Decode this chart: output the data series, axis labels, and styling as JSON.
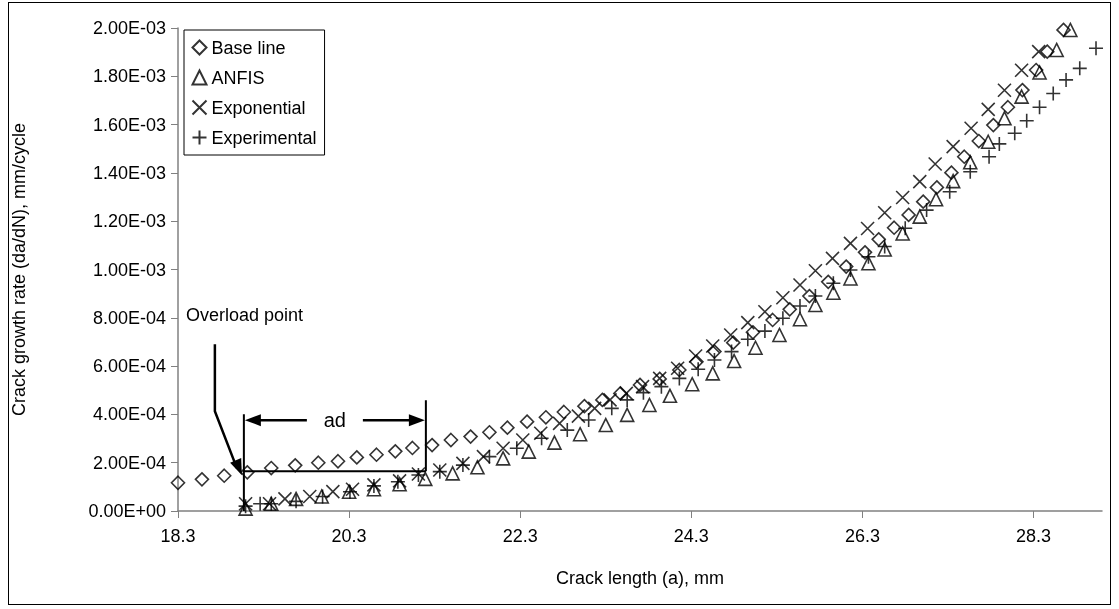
{
  "chart_data": {
    "type": "scatter",
    "xlabel": "Crack length (a), mm",
    "ylabel": "Crack growth rate (da/dN), mm/cycle",
    "xlim": [
      18.3,
      29.1
    ],
    "xticks": [
      18.3,
      20.3,
      22.3,
      24.3,
      26.3,
      28.3
    ],
    "ylim": [
      0,
      0.002
    ],
    "yticks": [
      {
        "value": 0,
        "label": "0.00E+00"
      },
      {
        "value": 0.0002,
        "label": "2.00E-04"
      },
      {
        "value": 0.0004,
        "label": "4.00E-04"
      },
      {
        "value": 0.0006,
        "label": "6.00E-04"
      },
      {
        "value": 0.0008,
        "label": "8.00E-04"
      },
      {
        "value": 0.001,
        "label": "1.00E-03"
      },
      {
        "value": 0.0012,
        "label": "1.20E-03"
      },
      {
        "value": 0.0014,
        "label": "1.40E-03"
      },
      {
        "value": 0.0016,
        "label": "1.60E-03"
      },
      {
        "value": 0.0018,
        "label": "1.80E-03"
      },
      {
        "value": 0.002,
        "label": "2.00E-03"
      }
    ],
    "grid": false,
    "legend": "top left",
    "annotations": [
      {
        "text": "Overload point",
        "x": 19.07,
        "y": 0.000165
      },
      "ad"
    ],
    "series": [
      {
        "name": "Base line",
        "color": "#000000",
        "marker": "diamond",
        "x": [
          18.3,
          18.58,
          18.84,
          19.11,
          19.39,
          19.67,
          19.94,
          20.17,
          20.39,
          20.62,
          20.84,
          21.04,
          21.27,
          21.49,
          21.72,
          21.94,
          22.15,
          22.38,
          22.6,
          22.81,
          23.05,
          23.26,
          23.47,
          23.7,
          23.93,
          24.16,
          24.36,
          24.57,
          24.79,
          25.02,
          25.25,
          25.45,
          25.68,
          25.9,
          26.11,
          26.33,
          26.49,
          26.67,
          26.84,
          27.01,
          27.17,
          27.34,
          27.49,
          27.66,
          27.83,
          28.0,
          28.17,
          28.33,
          28.46,
          28.65
        ],
        "values": [
          0.000117,
          0.000131,
          0.000146,
          0.00016,
          0.000178,
          0.000189,
          0.0002,
          0.000206,
          0.000222,
          0.000233,
          0.000247,
          0.000261,
          0.000273,
          0.000294,
          0.000308,
          0.000326,
          0.000345,
          0.00037,
          0.000388,
          0.00041,
          0.000434,
          0.00046,
          0.000487,
          0.000522,
          0.000547,
          0.000584,
          0.000618,
          0.00066,
          0.000697,
          0.00074,
          0.000791,
          0.000835,
          0.00089,
          0.000949,
          0.001012,
          0.001071,
          0.001125,
          0.001173,
          0.001226,
          0.001281,
          0.00134,
          0.001401,
          0.001467,
          0.001532,
          0.001598,
          0.001672,
          0.001743,
          0.001826,
          0.001902,
          0.001992
        ]
      },
      {
        "name": "ANFIS",
        "color": "#000000",
        "marker": "triangle",
        "x": [
          19.09,
          19.39,
          19.68,
          19.98,
          20.3,
          20.59,
          20.89,
          21.19,
          21.51,
          21.8,
          22.1,
          22.4,
          22.7,
          23.0,
          23.3,
          23.55,
          23.81,
          24.05,
          24.31,
          24.55,
          24.8,
          25.05,
          25.33,
          25.57,
          25.75,
          25.96,
          26.16,
          26.37,
          26.56,
          26.77,
          26.97,
          27.16,
          27.36,
          27.56,
          27.77,
          27.96,
          28.16,
          28.37,
          28.57,
          28.73
        ],
        "values": [
          1e-05,
          3e-05,
          5e-05,
          6e-05,
          8e-05,
          9e-05,
          0.000111,
          0.000133,
          0.000156,
          0.000181,
          0.000218,
          0.000246,
          0.000283,
          0.000318,
          0.000356,
          0.000398,
          0.000439,
          0.000477,
          0.000525,
          0.00057,
          0.000621,
          0.000676,
          0.000729,
          0.000794,
          0.000853,
          0.000904,
          0.000963,
          0.001026,
          0.001083,
          0.001149,
          0.001219,
          0.001291,
          0.001366,
          0.001444,
          0.001529,
          0.001626,
          0.001716,
          0.001816,
          0.001909,
          0.001992
        ]
      },
      {
        "name": "Exponential",
        "color": "#000000",
        "marker": "cross",
        "x": [
          19.09,
          19.37,
          19.55,
          19.84,
          20.11,
          20.34,
          20.59,
          20.89,
          21.11,
          21.36,
          21.63,
          21.87,
          22.1,
          22.33,
          22.54,
          22.76,
          22.98,
          23.17,
          23.35,
          23.54,
          23.73,
          23.93,
          24.14,
          24.35,
          24.55,
          24.76,
          24.96,
          25.16,
          25.37,
          25.57,
          25.75,
          25.95,
          26.16,
          26.36,
          26.56,
          26.77,
          26.97,
          27.15,
          27.36,
          27.57,
          27.77,
          27.96,
          28.16,
          28.36
        ],
        "values": [
          3e-05,
          3e-05,
          5e-05,
          6e-05,
          8e-05,
          9e-05,
          0.000108,
          0.000125,
          0.000153,
          0.00017,
          0.000197,
          0.000225,
          0.00026,
          0.000294,
          0.000322,
          0.000363,
          0.000393,
          0.000425,
          0.00046,
          0.000487,
          0.000515,
          0.000549,
          0.000591,
          0.000642,
          0.000683,
          0.000729,
          0.00078,
          0.000825,
          0.000883,
          0.000936,
          0.000995,
          0.001046,
          0.001108,
          0.00117,
          0.001235,
          0.001298,
          0.001364,
          0.001437,
          0.001509,
          0.001585,
          0.001663,
          0.001742,
          0.001825,
          0.001902
        ]
      },
      {
        "name": "Experimental",
        "color": "#000000",
        "marker": "plus",
        "x": [
          19.09,
          19.26,
          19.39,
          19.68,
          19.99,
          20.31,
          20.59,
          20.87,
          21.11,
          21.36,
          21.63,
          21.94,
          22.26,
          22.55,
          22.85,
          23.1,
          23.37,
          23.55,
          23.74,
          23.95,
          24.16,
          24.38,
          24.57,
          24.77,
          24.96,
          25.16,
          25.37,
          25.57,
          25.75,
          25.96,
          26.16,
          26.37,
          26.56,
          26.8,
          27.05,
          27.32,
          27.56,
          27.78,
          27.9,
          28.08,
          28.22,
          28.37,
          28.53,
          28.68,
          28.84,
          29.03
        ],
        "values": [
          2e-05,
          3e-05,
          3e-05,
          4e-05,
          6e-05,
          8e-05,
          0.000104,
          0.000121,
          0.000149,
          0.000163,
          0.00019,
          0.000225,
          0.00026,
          0.000301,
          0.000335,
          0.000377,
          0.000425,
          0.00046,
          0.00049,
          0.000515,
          0.000549,
          0.000587,
          0.000625,
          0.00066,
          0.000711,
          0.000745,
          0.000798,
          0.000849,
          0.00089,
          0.000943,
          0.000998,
          0.001053,
          0.001095,
          0.001171,
          0.001246,
          0.001322,
          0.001405,
          0.001467,
          0.00152,
          0.001564,
          0.001616,
          0.001672,
          0.001729,
          0.001785,
          0.001833,
          0.001916
        ]
      }
    ]
  }
}
